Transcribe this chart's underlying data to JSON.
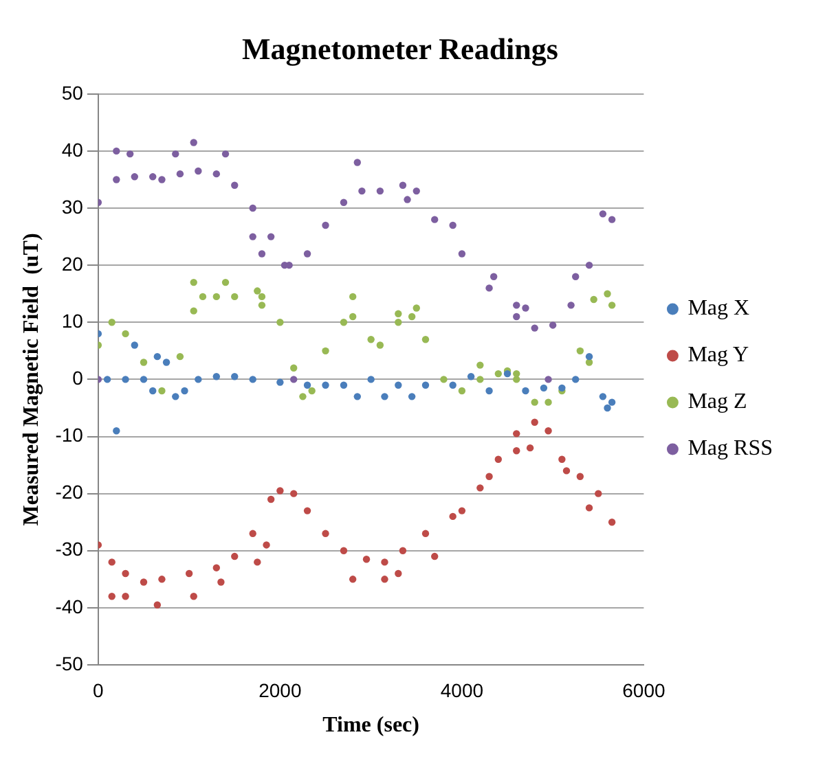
{
  "chart_data": {
    "type": "scatter",
    "title": "Magnetometer Readings",
    "xlabel": "Time (sec)",
    "ylabel": "Measured Magnetic Field  (uT)",
    "xlim": [
      0,
      6000
    ],
    "xticks": [
      0,
      2000,
      4000,
      6000
    ],
    "ylim": [
      -50,
      50
    ],
    "yticks": [
      -50,
      -40,
      -30,
      -20,
      -10,
      0,
      10,
      20,
      30,
      40,
      50
    ],
    "grid": "y",
    "legend": "right",
    "marker": "circle",
    "series": [
      {
        "name": "Mag X",
        "color": "#4a7ebb",
        "x": [
          0,
          100,
          200,
          300,
          400,
          500,
          600,
          650,
          750,
          850,
          950,
          1100,
          1300,
          1500,
          1700,
          2000,
          2300,
          2500,
          2700,
          2850,
          3000,
          3150,
          3300,
          3450,
          3600,
          3900,
          4100,
          4300,
          4500,
          4700,
          4900,
          5100,
          5250,
          5400,
          5550,
          5600,
          5650
        ],
        "values": [
          8,
          0,
          -9,
          0,
          6,
          0,
          -2,
          4,
          3,
          -3,
          -2,
          0,
          0.5,
          0.5,
          0,
          -0.5,
          -1,
          -1,
          -1,
          -3,
          0,
          -3,
          -1,
          -3,
          -1,
          -1,
          0.5,
          -2,
          1,
          -2,
          -1.5,
          -1.5,
          0,
          4,
          -3,
          -5,
          -4
        ]
      },
      {
        "name": "Mag Y",
        "color": "#be4b48",
        "x": [
          0,
          150,
          300,
          500,
          700,
          1000,
          1300,
          1500,
          1700,
          1900,
          2000,
          2150,
          2300,
          2500,
          2700,
          2950,
          3150,
          3350,
          3600,
          3900,
          4200,
          4400,
          4600,
          4800,
          4950,
          5100,
          5300,
          5500,
          5650,
          150,
          300,
          650,
          1050,
          1350,
          1750,
          1850,
          2800,
          3150,
          3300,
          3700,
          4000,
          4300,
          4600,
          4750,
          5150,
          5400
        ],
        "values": [
          -29,
          -32,
          -34,
          -35.5,
          -35,
          -34,
          -33,
          -31,
          -27,
          -21,
          -19.5,
          -20,
          -23,
          -27,
          -30,
          -31.5,
          -32,
          -30,
          -27,
          -24,
          -19,
          -14,
          -9.5,
          -7.5,
          -9,
          -14,
          -17,
          -20,
          -25,
          -38,
          -38,
          -39.5,
          -38,
          -35.5,
          -32,
          -29,
          -35,
          -35,
          -34,
          -31,
          -23,
          -17,
          -12.5,
          -12,
          -16,
          -22.5
        ]
      },
      {
        "name": "Mag Z",
        "color": "#98b954",
        "x": [
          0,
          150,
          300,
          500,
          700,
          900,
          1050,
          1150,
          1300,
          1500,
          1800,
          2000,
          2150,
          2250,
          2350,
          2500,
          2700,
          2800,
          3000,
          3100,
          3300,
          3450,
          3600,
          3800,
          4000,
          4200,
          4400,
          4600,
          4800,
          4950,
          5100,
          5300,
          5450,
          5600,
          5650,
          1050,
          1400,
          1750,
          1800,
          2800,
          3300,
          3500,
          4200,
          4500,
          4600,
          5400
        ],
        "values": [
          6,
          10,
          8,
          3,
          -2,
          4,
          12,
          14.5,
          14.5,
          14.5,
          13,
          10,
          2,
          -3,
          -2,
          5,
          10,
          11,
          7,
          6,
          10,
          11,
          7,
          0,
          -2,
          0,
          1,
          0,
          -4,
          -4,
          -2,
          5,
          14,
          15,
          13,
          17,
          17,
          15.5,
          14.5,
          14.5,
          11.5,
          12.5,
          2.5,
          1.5,
          1,
          3
        ]
      },
      {
        "name": "Mag RSS",
        "color": "#7d5fa0",
        "x": [
          0,
          200,
          400,
          600,
          700,
          900,
          1100,
          1300,
          1500,
          1700,
          1900,
          2050,
          2100,
          2300,
          2500,
          2700,
          2900,
          3100,
          3400,
          3700,
          4000,
          4300,
          4600,
          4800,
          5000,
          5200,
          5400,
          5650,
          200,
          350,
          850,
          1050,
          1400,
          1700,
          1800,
          2850,
          3350,
          3500,
          3900,
          4350,
          4600,
          4700,
          5250,
          5550,
          0,
          2150,
          4950
        ],
        "values": [
          31,
          35,
          35.5,
          35.5,
          35,
          36,
          36.5,
          36,
          34,
          30,
          25,
          20,
          20,
          22,
          27,
          31,
          33,
          33,
          31.5,
          28,
          22,
          16,
          11,
          9,
          9.5,
          13,
          20,
          28,
          40,
          39.5,
          39.5,
          41.5,
          39.5,
          25,
          22,
          38,
          34,
          33,
          27,
          18,
          13,
          12.5,
          18,
          29,
          0,
          0,
          0
        ]
      }
    ]
  }
}
